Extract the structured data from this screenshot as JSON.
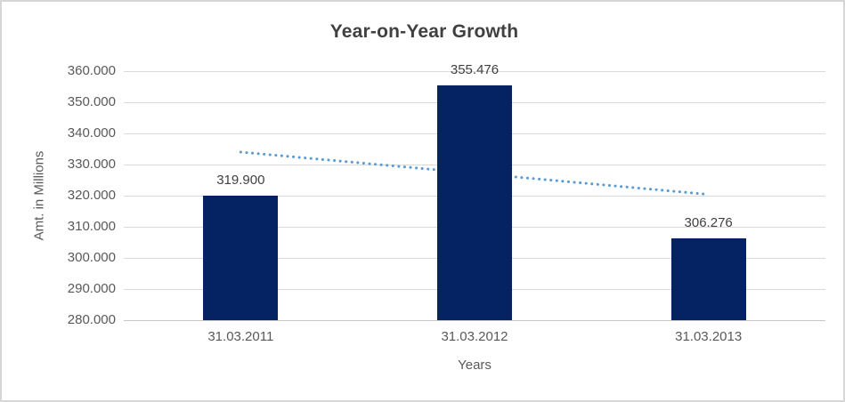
{
  "chart_data": {
    "type": "bar",
    "title": "Year-on-Year Growth",
    "xlabel": "Years",
    "ylabel": "Amt. in Millions",
    "categories": [
      "31.03.2011",
      "31.03.2012",
      "31.03.2013"
    ],
    "values": [
      319.9,
      355.476,
      306.276
    ],
    "value_labels": [
      "319.900",
      "355.476",
      "306.276"
    ],
    "ylim": [
      280,
      360
    ],
    "ytick_step": 10,
    "ytick_labels": [
      "280.000",
      "290.000",
      "300.000",
      "310.000",
      "320.000",
      "330.000",
      "340.000",
      "350.000",
      "360.000"
    ],
    "grid": true,
    "legend": "none",
    "bar_color": "#052263",
    "trendline": {
      "style": "dotted",
      "color": "#5B9BD5",
      "start_value": 334.0,
      "end_value": 320.4
    }
  },
  "style": {
    "title_color": "#404040",
    "tick_label_color": "#595959",
    "axis_title_color": "#595959",
    "data_label_color": "#404040",
    "gridline_color": "#D9D9D9",
    "axis_line_color": "#C6C6C6",
    "border_color": "#D6D6D6",
    "background": "#FFFFFF"
  }
}
